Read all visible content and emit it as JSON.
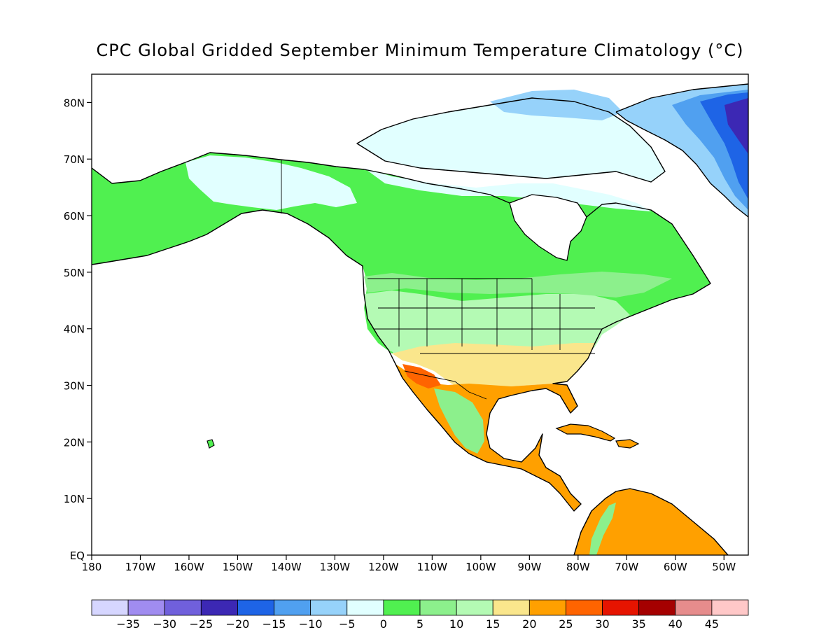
{
  "title": "CPC Global Gridded September Minimum Temperature Climatology (°C)",
  "chart_data": {
    "type": "heatmap",
    "xlim": [
      -180,
      -45
    ],
    "ylim": [
      0,
      85
    ],
    "y_ticks": [
      {
        "value": 80,
        "label": "80N"
      },
      {
        "value": 70,
        "label": "70N"
      },
      {
        "value": 60,
        "label": "60N"
      },
      {
        "value": 50,
        "label": "50N"
      },
      {
        "value": 40,
        "label": "40N"
      },
      {
        "value": 30,
        "label": "30N"
      },
      {
        "value": 20,
        "label": "20N"
      },
      {
        "value": 10,
        "label": "10N"
      },
      {
        "value": 0,
        "label": "EQ"
      }
    ],
    "x_ticks": [
      {
        "value": -180,
        "label": "180"
      },
      {
        "value": -170,
        "label": "170W"
      },
      {
        "value": -160,
        "label": "160W"
      },
      {
        "value": -150,
        "label": "150W"
      },
      {
        "value": -140,
        "label": "140W"
      },
      {
        "value": -130,
        "label": "130W"
      },
      {
        "value": -120,
        "label": "120W"
      },
      {
        "value": -110,
        "label": "110W"
      },
      {
        "value": -100,
        "label": "100W"
      },
      {
        "value": -90,
        "label": "90W"
      },
      {
        "value": -80,
        "label": "80W"
      },
      {
        "value": -70,
        "label": "70W"
      },
      {
        "value": -60,
        "label": "60W"
      },
      {
        "value": -50,
        "label": "50W"
      }
    ],
    "colorbar": {
      "colors": [
        "#d6d6ff",
        "#a08cf0",
        "#7060dc",
        "#3c28b4",
        "#1e64e6",
        "#50a0f0",
        "#96d2fa",
        "#e1ffff",
        "#50f050",
        "#8cf08c",
        "#b4fab4",
        "#fae68c",
        "#ffa000",
        "#ff6400",
        "#e61400",
        "#a50000",
        "#e68c8c",
        "#ffc8c8"
      ],
      "labels": [
        "-35",
        "-30",
        "-25",
        "-20",
        "-15",
        "-10",
        "-5",
        "0",
        "5",
        "10",
        "15",
        "20",
        "25",
        "30",
        "35",
        "40",
        "45"
      ]
    }
  }
}
